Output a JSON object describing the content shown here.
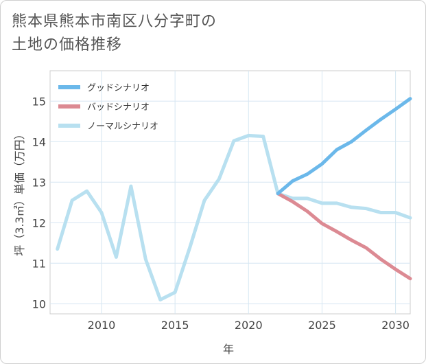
{
  "title_lines": [
    "熊本県熊本市南区八分字町の",
    "土地の価格推移"
  ],
  "chart_data": {
    "type": "line",
    "title": "熊本県熊本市南区八分字町の土地の価格推移",
    "xlabel": "年",
    "ylabel": "坪（3.3㎡）単価（万円）",
    "xlim": [
      2006.5,
      2031
    ],
    "ylim": [
      9.75,
      15.75
    ],
    "xticks": [
      2010,
      2015,
      2020,
      2025,
      2030
    ],
    "yticks": [
      10,
      11,
      12,
      13,
      14,
      15
    ],
    "grid": true,
    "legend_position": "top-left",
    "series": [
      {
        "name": "グッドシナリオ",
        "color": "#6bb8ea",
        "x": [
          2022,
          2023,
          2024,
          2025,
          2026,
          2027,
          2028,
          2029,
          2030,
          2031
        ],
        "values": [
          12.72,
          13.03,
          13.2,
          13.45,
          13.8,
          14.0,
          14.28,
          14.55,
          14.8,
          15.06
        ]
      },
      {
        "name": "バッドシナリオ",
        "color": "#dc8a93",
        "x": [
          2022,
          2023,
          2024,
          2025,
          2026,
          2027,
          2028,
          2029,
          2030,
          2031
        ],
        "values": [
          12.72,
          12.52,
          12.28,
          11.98,
          11.78,
          11.57,
          11.38,
          11.1,
          10.85,
          10.62
        ]
      },
      {
        "name": "ノーマルシナリオ",
        "color": "#b8e0f0",
        "x": [
          2007,
          2008,
          2009,
          2010,
          2011,
          2012,
          2013,
          2014,
          2015,
          2016,
          2017,
          2018,
          2019,
          2020,
          2021,
          2022,
          2023,
          2024,
          2025,
          2026,
          2027,
          2028,
          2029,
          2030,
          2031
        ],
        "values": [
          11.35,
          12.55,
          12.78,
          12.25,
          11.15,
          12.9,
          11.1,
          10.1,
          10.28,
          11.38,
          12.55,
          13.08,
          14.02,
          14.15,
          14.13,
          12.72,
          12.6,
          12.6,
          12.48,
          12.48,
          12.38,
          12.35,
          12.25,
          12.25,
          12.12
        ]
      }
    ]
  }
}
